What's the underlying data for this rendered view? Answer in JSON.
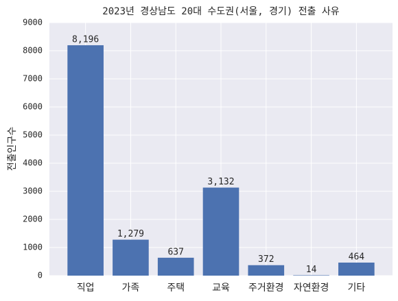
{
  "chart_data": {
    "type": "bar",
    "title": "2023년 경상남도 20대 수도권(서울, 경기) 전출 사유",
    "y_label": "전출인구수",
    "categories": [
      "직업",
      "가족",
      "주택",
      "교육",
      "주거환경",
      "자연환경",
      "기타"
    ],
    "values": [
      8196,
      1279,
      637,
      3132,
      372,
      14,
      464
    ],
    "value_labels": [
      "8,196",
      "1,279",
      "637",
      "3,132",
      "372",
      "14",
      "464"
    ],
    "color": "#4c72b0",
    "ylim": [
      0,
      9000
    ],
    "yticks": [
      0,
      1000,
      2000,
      3000,
      4000,
      5000,
      6000,
      7000,
      8000,
      9000
    ],
    "grid": true
  }
}
